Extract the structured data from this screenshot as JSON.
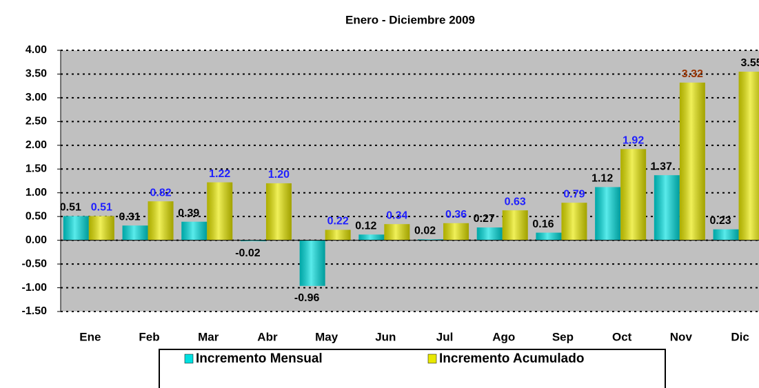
{
  "chart_data": {
    "type": "bar",
    "title": "Enero - Diciembre 2009",
    "categories": [
      "Ene",
      "Feb",
      "Mar",
      "Abr",
      "May",
      "Jun",
      "Jul",
      "Ago",
      "Sep",
      "Oct",
      "Nov",
      "Dic"
    ],
    "series": [
      {
        "name": "Incremento Mensual",
        "color": "#00e0e0",
        "values": [
          0.51,
          0.31,
          0.39,
          -0.02,
          -0.96,
          0.12,
          0.02,
          0.27,
          0.16,
          1.12,
          1.37,
          0.23
        ],
        "label_colors": [
          "#000000",
          "#000000",
          "#000000",
          "#000000",
          "#000000",
          "#000000",
          "#000000",
          "#000000",
          "#000000",
          "#000000",
          "#000000",
          "#000000"
        ]
      },
      {
        "name": "Incremento Acumulado",
        "color": "#e8e800",
        "values": [
          0.51,
          0.82,
          1.22,
          1.2,
          0.22,
          0.34,
          0.36,
          0.63,
          0.79,
          1.92,
          3.32,
          3.55
        ],
        "value_labels": [
          "0.51",
          "0.82",
          "1.22",
          "1.20",
          "0.22",
          "0.34",
          "0.36",
          "0.63",
          "0.79",
          "1.92",
          "3.32",
          "3.55"
        ],
        "label_colors": [
          "#1f1fff",
          "#1f1fff",
          "#1f1fff",
          "#1f1fff",
          "#1f1fff",
          "#1f1fff",
          "#1f1fff",
          "#1f1fff",
          "#1f1fff",
          "#1f1fff",
          "#993300",
          "#000000"
        ]
      }
    ],
    "ylim": [
      -1.5,
      4
    ],
    "yticks": [
      {
        "value": 4,
        "label": "4.00"
      },
      {
        "value": 3.5,
        "label": "3.50"
      },
      {
        "value": 3,
        "label": "3.00"
      },
      {
        "value": 2.5,
        "label": "2.50"
      },
      {
        "value": 2,
        "label": "2.00"
      },
      {
        "value": 1.5,
        "label": "1.50"
      },
      {
        "value": 1,
        "label": "1.00"
      },
      {
        "value": 0.5,
        "label": "0.50"
      },
      {
        "value": 0,
        "label": "0.00"
      },
      {
        "value": -0.5,
        "label": "-0.50"
      },
      {
        "value": -1,
        "label": "-1.00"
      },
      {
        "value": -1.5,
        "label": "-1.50"
      }
    ],
    "grid": true,
    "plot_background": "#c0c0c0"
  }
}
